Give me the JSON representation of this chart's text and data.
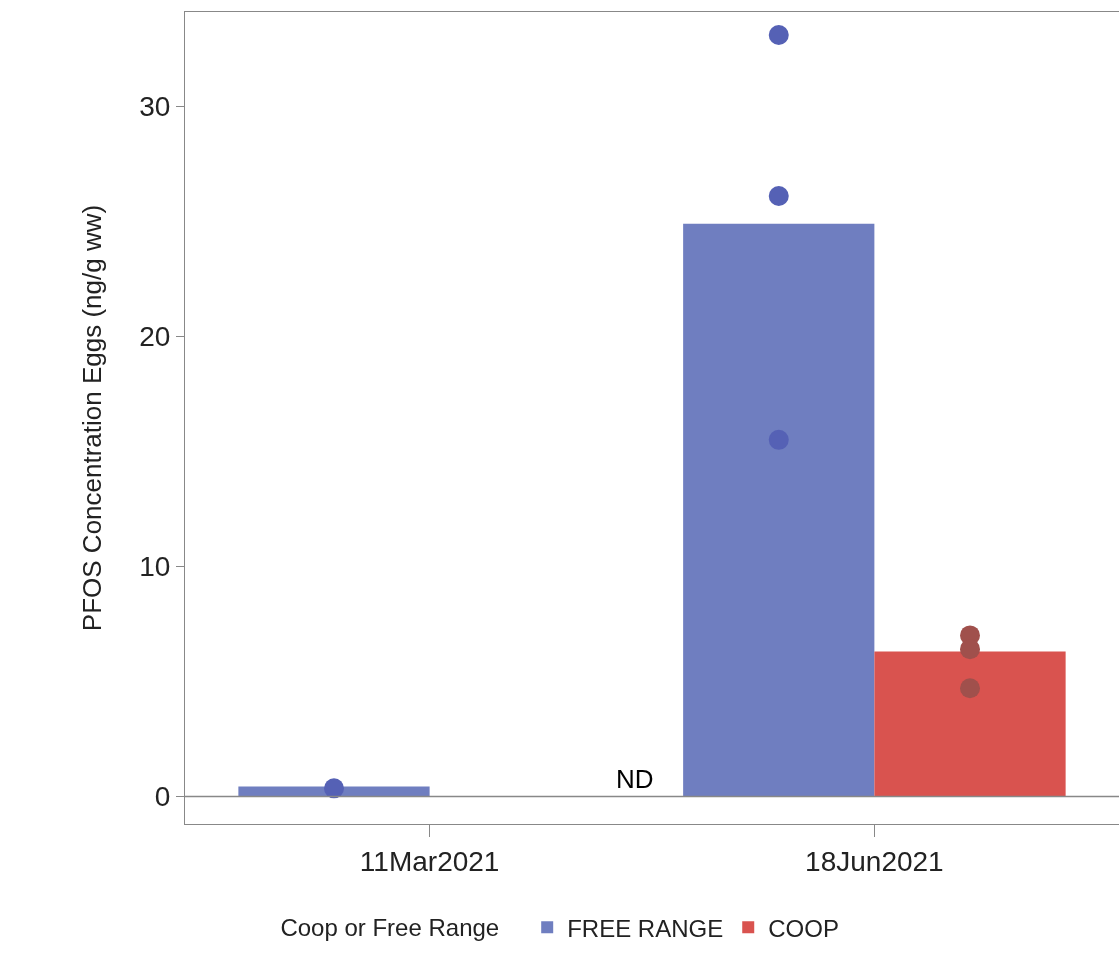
{
  "chart_data": {
    "type": "bar",
    "ylabel": "PFOS Concentration Eggs (ng/g ww)",
    "legend_title": "Coop or Free Range",
    "categories": [
      "11Mar2021",
      "18Jun2021"
    ],
    "series": [
      {
        "name": "FREE RANGE",
        "color": "#6f7ec0",
        "values": [
          0.43,
          24.9
        ]
      },
      {
        "name": "COOP",
        "color": "#d9534f",
        "values": [
          null,
          6.3
        ]
      },
      {
        "type": "scatter",
        "color": "#5561b5",
        "x": [
          "11Mar2021",
          "18Jun2021",
          "18Jun2021",
          "18Jun2021"
        ],
        "values": [
          0.35,
          33.1,
          26.1,
          15.5
        ]
      },
      {
        "type": "scatter",
        "color": "#a0504c",
        "x": [
          "18Jun2021",
          "18Jun2021",
          "18Jun2021"
        ],
        "values": [
          7.0,
          6.4,
          4.7
        ]
      }
    ],
    "annotations": [
      "ND"
    ],
    "ref_lines": [
      {
        "axis": "y",
        "value": 0,
        "color": "#888888"
      }
    ],
    "ylim": [
      -1.2,
      34.1
    ],
    "yticks": [
      0,
      10,
      20,
      30
    ],
    "legend": "bottom",
    "marker": "circle"
  }
}
